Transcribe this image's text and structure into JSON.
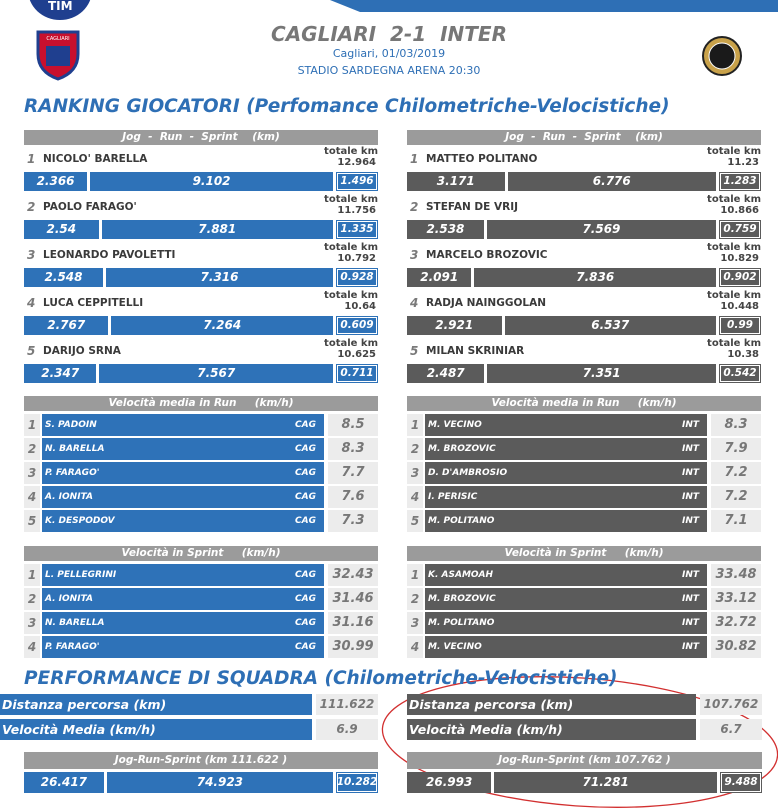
{
  "header": {
    "brand": "TIM",
    "title": "CAGLIARI  2-1  INTER",
    "subtitle": "Cagliari, 01/03/2019",
    "venue": "STADIO SARDEGNA ARENA 20:30",
    "home_crest": "CAGLIARI"
  },
  "ranking": {
    "title": "RANKING GIOCATORI (Perfomance Chilometriche-Velocistiche)",
    "teams": [
      {
        "header": "Jog  -  Run  -  Sprint    (km)",
        "total_label": "totale km",
        "players": [
          {
            "rank": 1,
            "name": "NICOLO' BARELLA",
            "total": 12.964,
            "jog": 2.366,
            "run": 9.102,
            "sprint": 1.496
          },
          {
            "rank": 2,
            "name": "PAOLO FARAGO'",
            "total": 11.756,
            "jog": 2.54,
            "run": 7.881,
            "sprint": 1.335
          },
          {
            "rank": 3,
            "name": "LEONARDO PAVOLETTI",
            "total": 10.792,
            "jog": 2.548,
            "run": 7.316,
            "sprint": 0.928
          },
          {
            "rank": 4,
            "name": "LUCA CEPPITELLI",
            "total": 10.64,
            "jog": 2.767,
            "run": 7.264,
            "sprint": 0.609
          },
          {
            "rank": 5,
            "name": "DARIJO SRNA",
            "total": 10.625,
            "jog": 2.347,
            "run": 7.567,
            "sprint": 0.711
          }
        ]
      },
      {
        "header": "Jog  -  Run  -  Sprint    (km)",
        "total_label": "totale km",
        "players": [
          {
            "rank": 1,
            "name": "MATTEO POLITANO",
            "total": 11.23,
            "jog": 3.171,
            "run": 6.776,
            "sprint": 1.283
          },
          {
            "rank": 2,
            "name": "STEFAN DE VRIJ",
            "total": 10.866,
            "jog": 2.538,
            "run": 7.569,
            "sprint": 0.759
          },
          {
            "rank": 3,
            "name": "MARCELO BROZOVIC",
            "total": 10.829,
            "jog": 2.091,
            "run": 7.836,
            "sprint": 0.902
          },
          {
            "rank": 4,
            "name": "RADJA NAINGGOLAN",
            "total": 10.448,
            "jog": 2.921,
            "run": 6.537,
            "sprint": 0.99
          },
          {
            "rank": 5,
            "name": "MILAN SKRINIAR",
            "total": 10.38,
            "jog": 2.487,
            "run": 7.351,
            "sprint": 0.542
          }
        ]
      }
    ]
  },
  "run_speed": {
    "teams": [
      {
        "header": "Velocità media in Run     (km/h)",
        "players": [
          {
            "rank": 1,
            "name": "S. PADOIN",
            "team": "CAG",
            "value": 8.5
          },
          {
            "rank": 2,
            "name": "N. BARELLA",
            "team": "CAG",
            "value": 8.3
          },
          {
            "rank": 3,
            "name": "P. FARAGO'",
            "team": "CAG",
            "value": 7.7
          },
          {
            "rank": 4,
            "name": "A. IONITA",
            "team": "CAG",
            "value": 7.6
          },
          {
            "rank": 5,
            "name": "K. DESPODOV",
            "team": "CAG",
            "value": 7.3
          }
        ]
      },
      {
        "header": "Velocità media in Run     (km/h)",
        "players": [
          {
            "rank": 1,
            "name": "M. VECINO",
            "team": "INT",
            "value": 8.3
          },
          {
            "rank": 2,
            "name": "M. BROZOVIC",
            "team": "INT",
            "value": 7.9
          },
          {
            "rank": 3,
            "name": "D. D'AMBROSIO",
            "team": "INT",
            "value": 7.2
          },
          {
            "rank": 4,
            "name": "I. PERISIC",
            "team": "INT",
            "value": 7.2
          },
          {
            "rank": 5,
            "name": "M. POLITANO",
            "team": "INT",
            "value": 7.1
          }
        ]
      }
    ]
  },
  "sprint_speed": {
    "teams": [
      {
        "header": "Velocità in Sprint     (km/h)",
        "players": [
          {
            "rank": 1,
            "name": "L. PELLEGRINI",
            "team": "CAG",
            "value": 32.43
          },
          {
            "rank": 2,
            "name": "A. IONITA",
            "team": "CAG",
            "value": 31.46
          },
          {
            "rank": 3,
            "name": "N. BARELLA",
            "team": "CAG",
            "value": 31.16
          },
          {
            "rank": 4,
            "name": "P. FARAGO'",
            "team": "CAG",
            "value": 30.99
          }
        ]
      },
      {
        "header": "Velocità in Sprint     (km/h)",
        "players": [
          {
            "rank": 1,
            "name": "K. ASAMOAH",
            "team": "INT",
            "value": 33.48
          },
          {
            "rank": 2,
            "name": "M. BROZOVIC",
            "team": "INT",
            "value": 33.12
          },
          {
            "rank": 3,
            "name": "M. POLITANO",
            "team": "INT",
            "value": 32.72
          },
          {
            "rank": 4,
            "name": "M. VECINO",
            "team": "INT",
            "value": 30.82
          }
        ]
      }
    ]
  },
  "team_performance": {
    "title": "PERFORMANCE DI SQUADRA (Chilometriche-Velocistiche)",
    "teams": [
      {
        "distance_label": "Distanza percorsa (km)",
        "distance": 111.622,
        "speed_label": "Velocità Media (km/h)",
        "speed": 6.9,
        "jrs_header": "Jog-Run-Sprint (km 111.622 )",
        "jog": 26.417,
        "run": 74.923,
        "sprint": 10.282
      },
      {
        "distance_label": "Distanza percorsa (km)",
        "distance": 107.762,
        "speed_label": "Velocità Media (km/h)",
        "speed": 6.7,
        "jrs_header": "Jog-Run-Sprint (km 107.762 )",
        "jog": 26.993,
        "run": 71.281,
        "sprint": 9.488
      }
    ]
  }
}
